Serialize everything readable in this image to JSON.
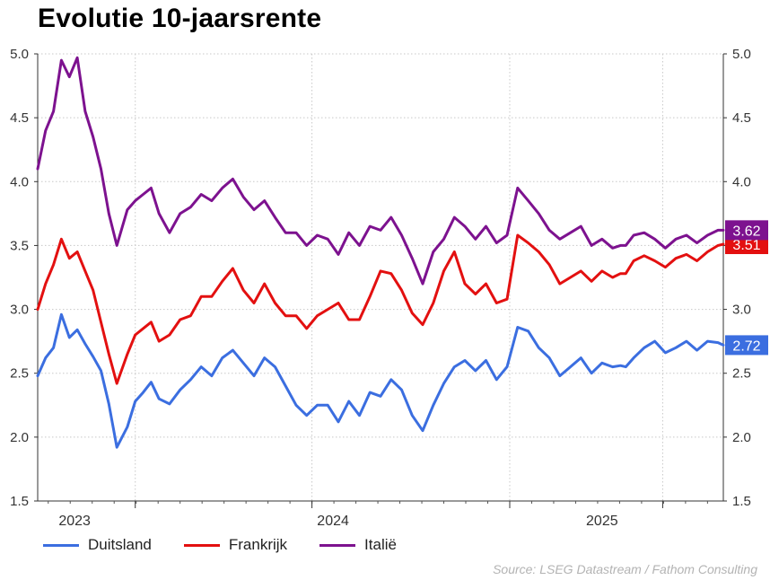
{
  "title": "Evolutie 10-jaarsrente",
  "source": "Source: LSEG Datastream / Fathom Consulting",
  "colors": {
    "Duitsland": "#3b6ee0",
    "Frankrijk": "#e31010",
    "Italië": "#7d128f"
  },
  "chart_data": {
    "type": "line",
    "title": "Evolutie 10-jaarsrente",
    "xlabel": "",
    "ylabel": "",
    "ylim": [
      1.5,
      5.0
    ],
    "yticks": [
      1.5,
      2.0,
      2.5,
      3.0,
      3.5,
      4.0,
      4.5,
      5.0
    ],
    "xlim": [
      2022.96,
      2025.56
    ],
    "xtick_labels": [
      "2023",
      "2024",
      "2025"
    ],
    "grid": true,
    "legend": "bottom",
    "series": [
      {
        "name": "Duitsland",
        "color": "#3b6ee0",
        "last_value": "2.72",
        "x": [
          2022.96,
          2022.99,
          2023.02,
          2023.05,
          2023.08,
          2023.11,
          2023.14,
          2023.17,
          2023.2,
          2023.23,
          2023.26,
          2023.3,
          2023.33,
          2023.36,
          2023.39,
          2023.42,
          2023.46,
          2023.5,
          2023.54,
          2023.58,
          2023.62,
          2023.66,
          2023.7,
          2023.74,
          2023.78,
          2023.82,
          2023.86,
          2023.9,
          2023.94,
          2023.98,
          2024.02,
          2024.06,
          2024.1,
          2024.14,
          2024.18,
          2024.22,
          2024.26,
          2024.3,
          2024.34,
          2024.38,
          2024.42,
          2024.46,
          2024.5,
          2024.54,
          2024.58,
          2024.62,
          2024.66,
          2024.7,
          2024.74,
          2024.78,
          2024.82,
          2024.86,
          2024.9,
          2024.94,
          2024.98,
          2025.02,
          2025.06,
          2025.1,
          2025.14,
          2025.17,
          2025.19,
          2025.22,
          2025.26,
          2025.3,
          2025.34,
          2025.38,
          2025.42,
          2025.46,
          2025.5,
          2025.54,
          2025.56
        ],
        "values": [
          2.48,
          2.62,
          2.7,
          2.96,
          2.78,
          2.84,
          2.73,
          2.63,
          2.52,
          2.26,
          1.92,
          2.08,
          2.28,
          2.35,
          2.43,
          2.3,
          2.26,
          2.37,
          2.45,
          2.55,
          2.48,
          2.62,
          2.68,
          2.58,
          2.48,
          2.62,
          2.55,
          2.4,
          2.25,
          2.17,
          2.25,
          2.25,
          2.12,
          2.28,
          2.17,
          2.35,
          2.32,
          2.45,
          2.37,
          2.17,
          2.05,
          2.25,
          2.42,
          2.55,
          2.6,
          2.52,
          2.6,
          2.45,
          2.55,
          2.86,
          2.83,
          2.7,
          2.62,
          2.48,
          2.55,
          2.62,
          2.5,
          2.58,
          2.55,
          2.56,
          2.55,
          2.62,
          2.7,
          2.75,
          2.66,
          2.7,
          2.75,
          2.68,
          2.75,
          2.74,
          2.72
        ]
      },
      {
        "name": "Frankrijk",
        "color": "#e31010",
        "last_value": "3.51",
        "x": [
          2022.96,
          2022.99,
          2023.02,
          2023.05,
          2023.08,
          2023.11,
          2023.14,
          2023.17,
          2023.2,
          2023.23,
          2023.26,
          2023.3,
          2023.33,
          2023.36,
          2023.39,
          2023.42,
          2023.46,
          2023.5,
          2023.54,
          2023.58,
          2023.62,
          2023.66,
          2023.7,
          2023.74,
          2023.78,
          2023.82,
          2023.86,
          2023.9,
          2023.94,
          2023.98,
          2024.02,
          2024.06,
          2024.1,
          2024.14,
          2024.18,
          2024.22,
          2024.26,
          2024.3,
          2024.34,
          2024.38,
          2024.42,
          2024.46,
          2024.5,
          2024.54,
          2024.58,
          2024.62,
          2024.66,
          2024.7,
          2024.74,
          2024.78,
          2024.82,
          2024.86,
          2024.9,
          2024.94,
          2024.98,
          2025.02,
          2025.06,
          2025.1,
          2025.14,
          2025.17,
          2025.19,
          2025.22,
          2025.26,
          2025.3,
          2025.34,
          2025.38,
          2025.42,
          2025.46,
          2025.5,
          2025.54,
          2025.56
        ],
        "values": [
          3.0,
          3.2,
          3.35,
          3.55,
          3.4,
          3.45,
          3.3,
          3.15,
          2.9,
          2.65,
          2.42,
          2.65,
          2.8,
          2.85,
          2.9,
          2.75,
          2.8,
          2.92,
          2.95,
          3.1,
          3.1,
          3.22,
          3.32,
          3.15,
          3.05,
          3.2,
          3.05,
          2.95,
          2.95,
          2.85,
          2.95,
          3.0,
          3.05,
          2.92,
          2.92,
          3.1,
          3.3,
          3.28,
          3.15,
          2.97,
          2.88,
          3.05,
          3.3,
          3.45,
          3.2,
          3.12,
          3.2,
          3.05,
          3.08,
          3.58,
          3.52,
          3.45,
          3.35,
          3.2,
          3.25,
          3.3,
          3.22,
          3.3,
          3.25,
          3.28,
          3.28,
          3.38,
          3.42,
          3.38,
          3.33,
          3.4,
          3.43,
          3.38,
          3.45,
          3.5,
          3.51
        ]
      },
      {
        "name": "Italië",
        "color": "#7d128f",
        "last_value": "3.62",
        "x": [
          2022.96,
          2022.99,
          2023.02,
          2023.05,
          2023.08,
          2023.11,
          2023.14,
          2023.17,
          2023.2,
          2023.23,
          2023.26,
          2023.3,
          2023.33,
          2023.36,
          2023.39,
          2023.42,
          2023.46,
          2023.5,
          2023.54,
          2023.58,
          2023.62,
          2023.66,
          2023.7,
          2023.74,
          2023.78,
          2023.82,
          2023.86,
          2023.9,
          2023.94,
          2023.98,
          2024.02,
          2024.06,
          2024.1,
          2024.14,
          2024.18,
          2024.22,
          2024.26,
          2024.3,
          2024.34,
          2024.38,
          2024.42,
          2024.46,
          2024.5,
          2024.54,
          2024.58,
          2024.62,
          2024.66,
          2024.7,
          2024.74,
          2024.78,
          2024.82,
          2024.86,
          2024.9,
          2024.94,
          2024.98,
          2025.02,
          2025.06,
          2025.1,
          2025.14,
          2025.17,
          2025.19,
          2025.22,
          2025.26,
          2025.3,
          2025.34,
          2025.38,
          2025.42,
          2025.46,
          2025.5,
          2025.54,
          2025.56
        ],
        "values": [
          4.1,
          4.4,
          4.55,
          4.95,
          4.82,
          4.97,
          4.55,
          4.35,
          4.1,
          3.75,
          3.5,
          3.78,
          3.85,
          3.9,
          3.95,
          3.75,
          3.6,
          3.75,
          3.8,
          3.9,
          3.85,
          3.95,
          4.02,
          3.88,
          3.78,
          3.85,
          3.72,
          3.6,
          3.6,
          3.5,
          3.58,
          3.55,
          3.43,
          3.6,
          3.5,
          3.65,
          3.62,
          3.72,
          3.58,
          3.4,
          3.2,
          3.45,
          3.55,
          3.72,
          3.65,
          3.55,
          3.65,
          3.52,
          3.58,
          3.95,
          3.85,
          3.75,
          3.62,
          3.55,
          3.6,
          3.65,
          3.5,
          3.55,
          3.48,
          3.5,
          3.5,
          3.58,
          3.6,
          3.55,
          3.48,
          3.55,
          3.58,
          3.52,
          3.58,
          3.62,
          3.62
        ]
      }
    ]
  }
}
